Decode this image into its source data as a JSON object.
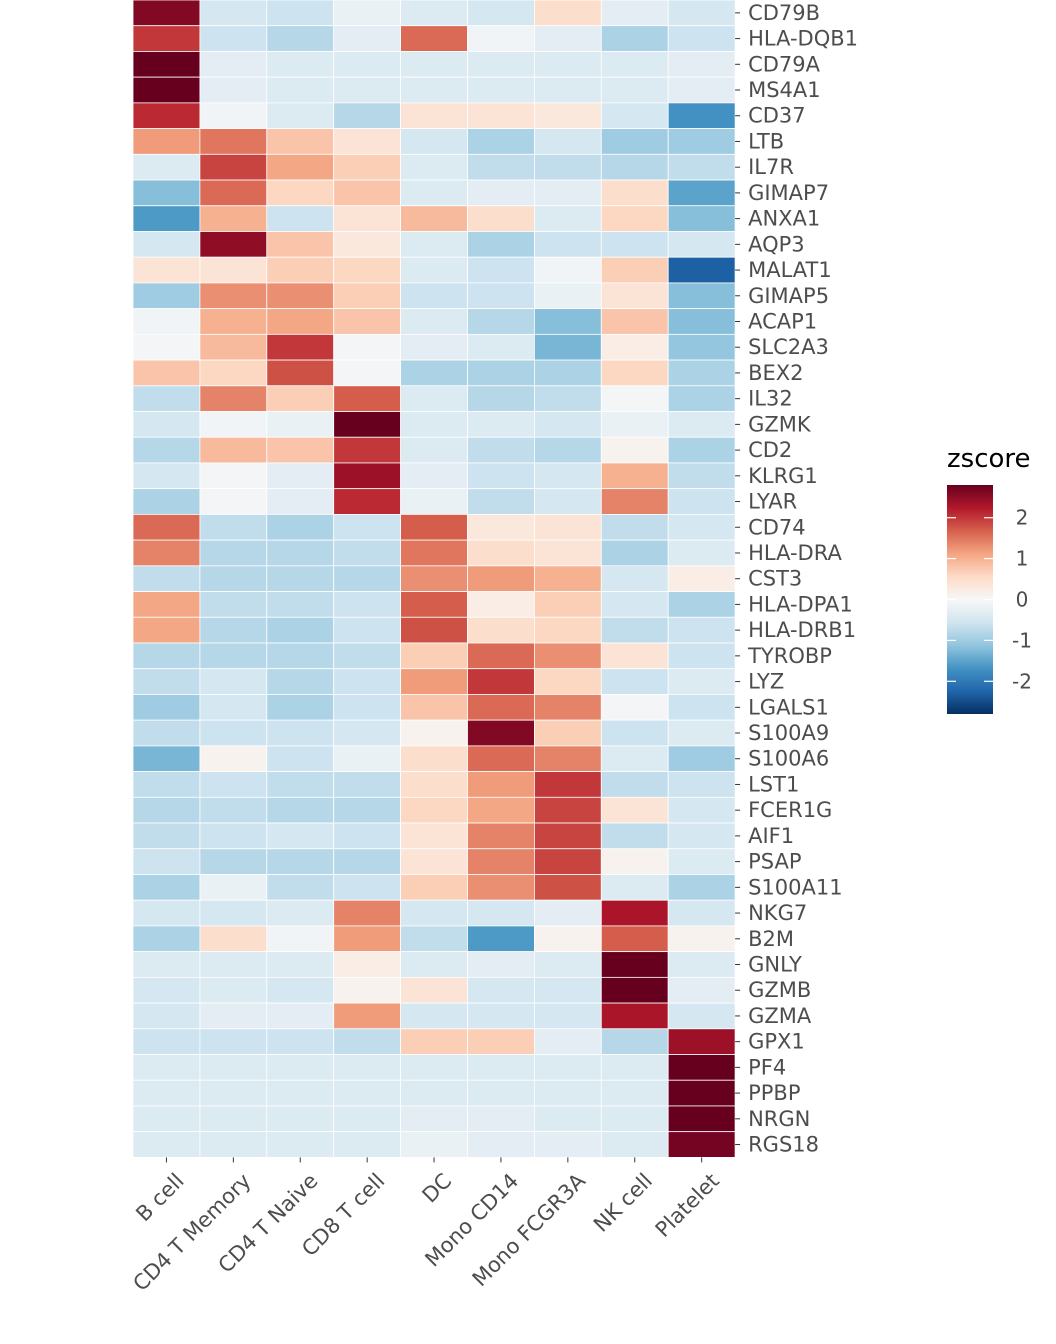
{
  "chart_data": {
    "type": "heatmap",
    "title": "",
    "xlabel": "",
    "ylabel": "",
    "x_categories": [
      "B cell",
      "CD4 T Memory",
      "CD4 T Naive",
      "CD8 T cell",
      "DC",
      "Mono CD14",
      "Mono FCGR3A",
      "NK cell",
      "Platelet"
    ],
    "y_categories": [
      "CD79B",
      "HLA-DQB1",
      "CD79A",
      "MS4A1",
      "CD37",
      "LTB",
      "IL7R",
      "GIMAP7",
      "ANXA1",
      "AQP3",
      "MALAT1",
      "GIMAP5",
      "ACAP1",
      "SLC2A3",
      "BEX2",
      "IL32",
      "GZMK",
      "CD2",
      "KLRG1",
      "LYAR",
      "CD74",
      "HLA-DRA",
      "CST3",
      "HLA-DPA1",
      "HLA-DRB1",
      "TYROBP",
      "LYZ",
      "LGALS1",
      "S100A9",
      "S100A6",
      "LST1",
      "FCER1G",
      "AIF1",
      "PSAP",
      "S100A11",
      "NKG7",
      "B2M",
      "GNLY",
      "GZMB",
      "GZMA",
      "GPX1",
      "PF4",
      "PPBP",
      "NRGN",
      "RGS18"
    ],
    "values": [
      [
        2.6,
        -0.5,
        -0.6,
        -0.2,
        -0.4,
        -0.5,
        0.5,
        -0.3,
        -0.5
      ],
      [
        2.0,
        -0.6,
        -0.8,
        -0.3,
        1.6,
        -0.1,
        -0.3,
        -0.9,
        -0.6
      ],
      [
        2.8,
        -0.3,
        -0.4,
        -0.4,
        -0.4,
        -0.4,
        -0.4,
        -0.4,
        -0.3
      ],
      [
        2.8,
        -0.3,
        -0.4,
        -0.4,
        -0.4,
        -0.4,
        -0.4,
        -0.4,
        -0.3
      ],
      [
        2.1,
        -0.1,
        -0.4,
        -0.8,
        0.4,
        0.4,
        0.3,
        -0.5,
        -1.7
      ],
      [
        1.2,
        1.5,
        0.8,
        0.4,
        -0.5,
        -0.9,
        -0.5,
        -1.0,
        -1.0
      ],
      [
        -0.4,
        1.9,
        1.1,
        0.7,
        -0.4,
        -0.7,
        -0.7,
        -0.8,
        -0.7
      ],
      [
        -1.2,
        1.6,
        0.6,
        0.8,
        -0.4,
        -0.3,
        -0.3,
        0.5,
        -1.5
      ],
      [
        -1.6,
        1.0,
        -0.6,
        0.4,
        0.9,
        0.5,
        -0.4,
        0.6,
        -1.2
      ],
      [
        -0.5,
        2.5,
        0.8,
        0.3,
        -0.4,
        -0.9,
        -0.6,
        -0.6,
        -0.5
      ],
      [
        0.4,
        0.4,
        0.7,
        0.6,
        -0.4,
        -0.6,
        -0.1,
        0.7,
        -2.3
      ],
      [
        -1.0,
        1.3,
        1.3,
        0.7,
        -0.6,
        -0.6,
        -0.2,
        0.4,
        -1.2
      ],
      [
        -0.1,
        1.0,
        1.1,
        0.8,
        -0.4,
        -0.8,
        -1.2,
        0.8,
        -1.2
      ],
      [
        -0.05,
        0.9,
        2.0,
        -0.05,
        -0.3,
        -0.4,
        -1.3,
        0.2,
        -1.1
      ],
      [
        0.8,
        0.6,
        1.8,
        -0.05,
        -0.9,
        -0.9,
        -0.9,
        0.6,
        -0.9
      ],
      [
        -0.7,
        1.4,
        0.7,
        1.7,
        -0.4,
        -0.8,
        -0.7,
        -0.05,
        -0.9
      ],
      [
        -0.5,
        -0.1,
        -0.2,
        2.8,
        -0.4,
        -0.4,
        -0.5,
        -0.2,
        -0.4
      ],
      [
        -0.8,
        0.9,
        0.8,
        2.0,
        -0.4,
        -0.7,
        -0.8,
        0.1,
        -0.9
      ],
      [
        -0.5,
        -0.05,
        -0.3,
        2.4,
        -0.3,
        -0.6,
        -0.5,
        1.0,
        -0.7
      ],
      [
        -0.9,
        -0.05,
        -0.3,
        2.1,
        -0.2,
        -0.7,
        -0.5,
        1.4,
        -0.6
      ],
      [
        1.6,
        -0.7,
        -0.9,
        -0.6,
        1.7,
        0.3,
        0.4,
        -0.7,
        -0.5
      ],
      [
        1.4,
        -0.8,
        -0.8,
        -0.7,
        1.5,
        0.5,
        0.4,
        -0.9,
        -0.4
      ],
      [
        -0.7,
        -0.8,
        -0.8,
        -0.8,
        1.3,
        1.2,
        1.0,
        -0.5,
        0.2
      ],
      [
        1.1,
        -0.7,
        -0.7,
        -0.6,
        1.7,
        0.2,
        0.7,
        -0.5,
        -0.9
      ],
      [
        1.1,
        -0.8,
        -0.9,
        -0.6,
        1.8,
        0.5,
        0.6,
        -0.7,
        -0.6
      ],
      [
        -0.8,
        -0.8,
        -0.8,
        -0.7,
        0.7,
        1.6,
        1.3,
        0.4,
        -0.6
      ],
      [
        -0.7,
        -0.5,
        -0.8,
        -0.6,
        1.2,
        2.0,
        0.6,
        -0.6,
        -0.4
      ],
      [
        -1.0,
        -0.5,
        -0.9,
        -0.6,
        0.8,
        1.6,
        1.4,
        -0.05,
        -0.6
      ],
      [
        -0.7,
        -0.6,
        -0.6,
        -0.5,
        0.1,
        2.6,
        0.7,
        -0.6,
        -0.4
      ],
      [
        -1.3,
        0.1,
        -0.6,
        -0.2,
        0.5,
        1.6,
        1.4,
        -0.4,
        -1.0
      ],
      [
        -0.7,
        -0.6,
        -0.7,
        -0.7,
        0.5,
        1.2,
        2.0,
        -0.7,
        -0.6
      ],
      [
        -0.8,
        -0.7,
        -0.8,
        -0.8,
        0.6,
        1.1,
        1.9,
        0.4,
        -0.5
      ],
      [
        -0.7,
        -0.6,
        -0.5,
        -0.6,
        0.4,
        1.4,
        1.9,
        -0.7,
        -0.5
      ],
      [
        -0.6,
        -0.8,
        -0.8,
        -0.8,
        0.4,
        1.4,
        1.9,
        0.1,
        -0.4
      ],
      [
        -0.9,
        -0.2,
        -0.7,
        -0.6,
        0.7,
        1.3,
        1.8,
        -0.4,
        -0.9
      ],
      [
        -0.5,
        -0.5,
        -0.4,
        1.4,
        -0.5,
        -0.5,
        -0.3,
        2.3,
        -0.5
      ],
      [
        -0.9,
        0.5,
        -0.1,
        1.2,
        -0.7,
        -1.6,
        0.1,
        1.7,
        0.1
      ],
      [
        -0.4,
        -0.4,
        -0.4,
        0.2,
        -0.4,
        -0.3,
        -0.4,
        2.8,
        -0.4
      ],
      [
        -0.5,
        -0.4,
        -0.5,
        0.1,
        0.4,
        -0.5,
        -0.5,
        2.8,
        -0.3
      ],
      [
        -0.5,
        -0.3,
        -0.3,
        1.2,
        -0.5,
        -0.5,
        -0.5,
        2.3,
        -0.5
      ],
      [
        -0.6,
        -0.6,
        -0.6,
        -0.7,
        0.7,
        0.7,
        -0.3,
        -0.8,
        2.4
      ],
      [
        -0.4,
        -0.4,
        -0.4,
        -0.4,
        -0.4,
        -0.4,
        -0.4,
        -0.4,
        2.8
      ],
      [
        -0.4,
        -0.4,
        -0.4,
        -0.4,
        -0.4,
        -0.4,
        -0.4,
        -0.4,
        2.8
      ],
      [
        -0.4,
        -0.4,
        -0.4,
        -0.4,
        -0.3,
        -0.3,
        -0.4,
        -0.4,
        2.8
      ],
      [
        -0.4,
        -0.4,
        -0.4,
        -0.4,
        -0.2,
        -0.3,
        -0.3,
        -0.4,
        2.7
      ]
    ],
    "colorscale": [
      "#053061",
      "#2166ac",
      "#4393c3",
      "#92c5de",
      "#d1e5f0",
      "#f7f7f7",
      "#fddbc7",
      "#f4a582",
      "#d6604d",
      "#b2182b",
      "#67001f"
    ],
    "color_range": [
      -2.8,
      2.8
    ],
    "legend": {
      "title": "zscore",
      "ticks": [
        2,
        1,
        0,
        -1,
        -2
      ],
      "tick_labels": [
        "2",
        "1",
        "0",
        "-1",
        "-2"
      ],
      "position": "right"
    }
  }
}
